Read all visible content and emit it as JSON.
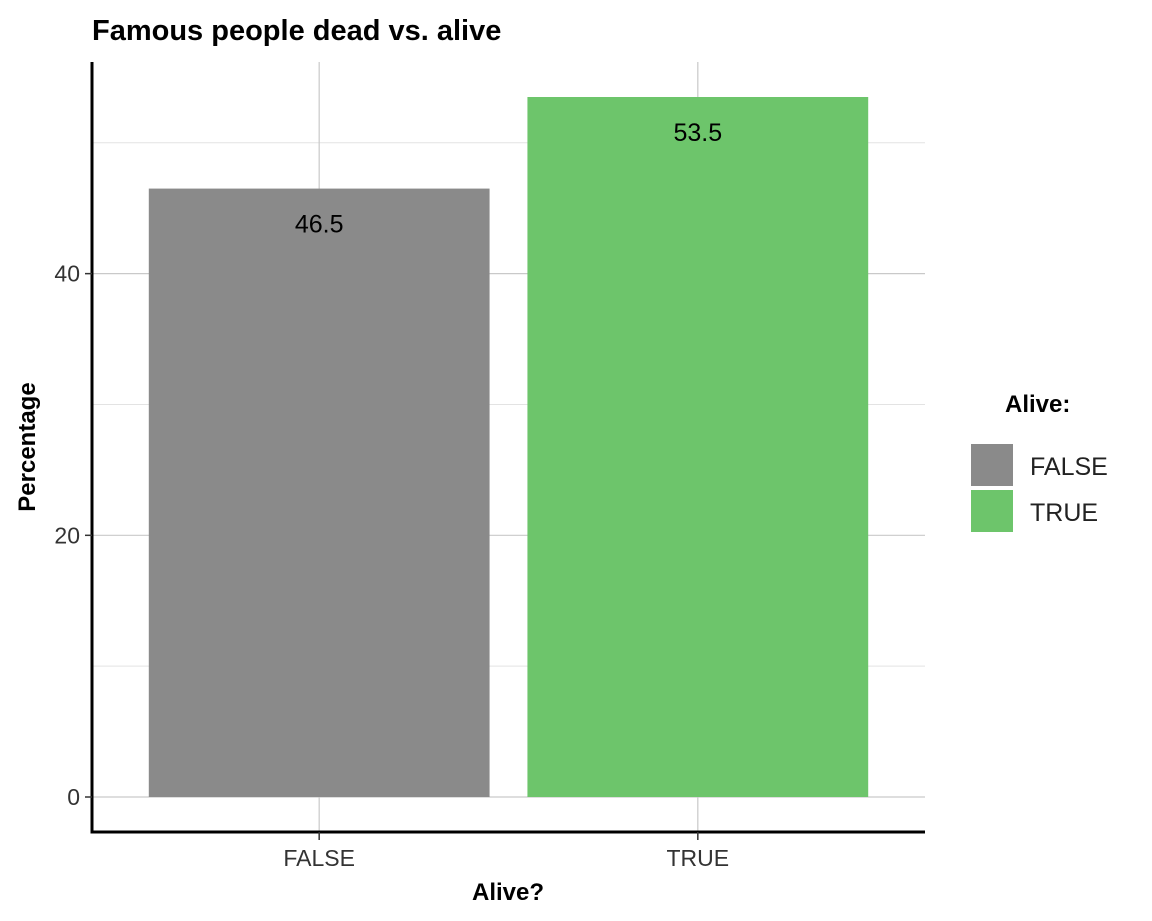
{
  "chart_data": {
    "type": "bar",
    "title": "Famous people dead vs. alive",
    "xlabel": "Alive?",
    "ylabel": "Percentage",
    "categories": [
      "FALSE",
      "TRUE"
    ],
    "values": [
      46.5,
      53.5
    ],
    "data_labels": [
      "46.5",
      "53.5"
    ],
    "colors": [
      "#8a8a8a",
      "#6dc56b"
    ],
    "ylim": [
      -2.675,
      56.175
    ],
    "yticks": [
      0,
      20,
      40
    ],
    "ytick_labels": [
      "0",
      "20",
      "40"
    ],
    "yminor": [
      10,
      30,
      50
    ],
    "grid": true,
    "legend": {
      "title": "Alive:",
      "position": "right",
      "entries": [
        "FALSE",
        "TRUE"
      ]
    }
  }
}
